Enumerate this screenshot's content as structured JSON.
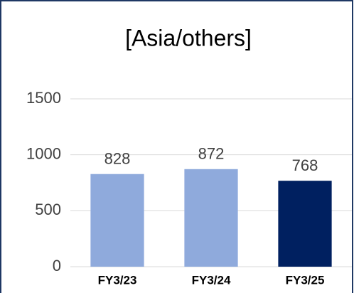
{
  "chart_data": {
    "type": "bar",
    "title": "[Asia/others]",
    "categories": [
      "FY3/23",
      "FY3/24",
      "FY3/25"
    ],
    "values": [
      828,
      872,
      768
    ],
    "colors": [
      "#8faadc",
      "#8faadc",
      "#002060"
    ],
    "ylim": [
      0,
      1500
    ],
    "yticks": [
      0,
      500,
      1000,
      1500
    ],
    "grid": true
  }
}
